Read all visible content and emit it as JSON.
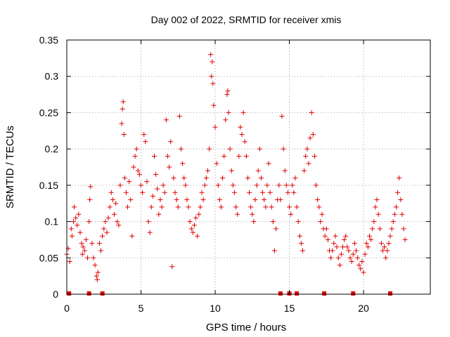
{
  "chart_data": {
    "type": "scatter",
    "title": "Day 002 of 2022, SRMTID for receiver xmis",
    "xlabel": "GPS time / hours",
    "ylabel": "SRMTID / TECUs",
    "xlim": [
      0,
      24.5
    ],
    "ylim": [
      0,
      0.35
    ],
    "xticks": [
      0,
      5,
      10,
      15,
      20
    ],
    "xtick_labels": [
      "0",
      "5",
      "10",
      "15",
      "20"
    ],
    "yticks": [
      0,
      0.05,
      0.1,
      0.15,
      0.2,
      0.25,
      0.3,
      0.35
    ],
    "ytick_labels": [
      "0",
      "0.05",
      "0.1",
      "0.15",
      "0.2",
      "0.25",
      "0.3",
      "0.35"
    ],
    "grid": true,
    "marker": "+",
    "color": "#e00000",
    "series": [
      {
        "name": "SRMTID",
        "points": [
          [
            0.0,
            0.055
          ],
          [
            0.1,
            0.063
          ],
          [
            0.2,
            0.045
          ],
          [
            0.3,
            0.09
          ],
          [
            0.35,
            0.08
          ],
          [
            0.45,
            0.1
          ],
          [
            0.5,
            0.12
          ],
          [
            0.6,
            0.105
          ],
          [
            0.7,
            0.095
          ],
          [
            0.8,
            0.11
          ],
          [
            0.9,
            0.085
          ],
          [
            1.0,
            0.07
          ],
          [
            1.05,
            0.055
          ],
          [
            1.1,
            0.065
          ],
          [
            1.2,
            0.06
          ],
          [
            1.3,
            0.075
          ],
          [
            1.4,
            0.05
          ],
          [
            1.5,
            0.1
          ],
          [
            1.55,
            0.13
          ],
          [
            1.6,
            0.148
          ],
          [
            1.7,
            0.07
          ],
          [
            1.8,
            0.05
          ],
          [
            1.9,
            0.04
          ],
          [
            2.0,
            0.025
          ],
          [
            2.05,
            0.02
          ],
          [
            2.1,
            0.03
          ],
          [
            2.2,
            0.07
          ],
          [
            2.3,
            0.06
          ],
          [
            2.4,
            0.08
          ],
          [
            2.5,
            0.09
          ],
          [
            2.6,
            0.1
          ],
          [
            2.7,
            0.085
          ],
          [
            2.8,
            0.105
          ],
          [
            2.9,
            0.12
          ],
          [
            3.0,
            0.14
          ],
          [
            3.1,
            0.13
          ],
          [
            3.2,
            0.11
          ],
          [
            3.3,
            0.125
          ],
          [
            3.4,
            0.1
          ],
          [
            3.5,
            0.095
          ],
          [
            3.6,
            0.15
          ],
          [
            3.7,
            0.235
          ],
          [
            3.75,
            0.255
          ],
          [
            3.8,
            0.265
          ],
          [
            3.85,
            0.22
          ],
          [
            3.9,
            0.16
          ],
          [
            4.0,
            0.14
          ],
          [
            4.1,
            0.12
          ],
          [
            4.2,
            0.155
          ],
          [
            4.3,
            0.13
          ],
          [
            4.4,
            0.08
          ],
          [
            4.5,
            0.175
          ],
          [
            4.6,
            0.19
          ],
          [
            4.7,
            0.2
          ],
          [
            4.8,
            0.17
          ],
          [
            4.9,
            0.165
          ],
          [
            5.0,
            0.15
          ],
          [
            5.1,
            0.14
          ],
          [
            5.2,
            0.22
          ],
          [
            5.3,
            0.21
          ],
          [
            5.4,
            0.155
          ],
          [
            5.5,
            0.1
          ],
          [
            5.6,
            0.085
          ],
          [
            5.7,
            0.12
          ],
          [
            5.8,
            0.135
          ],
          [
            5.9,
            0.19
          ],
          [
            6.0,
            0.165
          ],
          [
            6.1,
            0.145
          ],
          [
            6.2,
            0.11
          ],
          [
            6.3,
            0.13
          ],
          [
            6.4,
            0.12
          ],
          [
            6.5,
            0.15
          ],
          [
            6.6,
            0.14
          ],
          [
            6.7,
            0.24
          ],
          [
            6.8,
            0.19
          ],
          [
            6.9,
            0.175
          ],
          [
            7.0,
            0.21
          ],
          [
            7.1,
            0.038
          ],
          [
            7.2,
            0.16
          ],
          [
            7.3,
            0.14
          ],
          [
            7.4,
            0.13
          ],
          [
            7.5,
            0.12
          ],
          [
            7.6,
            0.245
          ],
          [
            7.7,
            0.2
          ],
          [
            7.8,
            0.18
          ],
          [
            7.9,
            0.16
          ],
          [
            8.0,
            0.15
          ],
          [
            8.1,
            0.13
          ],
          [
            8.2,
            0.12
          ],
          [
            8.3,
            0.1
          ],
          [
            8.4,
            0.09
          ],
          [
            8.5,
            0.085
          ],
          [
            8.6,
            0.095
          ],
          [
            8.7,
            0.105
          ],
          [
            8.8,
            0.08
          ],
          [
            8.9,
            0.11
          ],
          [
            9.0,
            0.12
          ],
          [
            9.1,
            0.14
          ],
          [
            9.2,
            0.13
          ],
          [
            9.3,
            0.15
          ],
          [
            9.4,
            0.16
          ],
          [
            9.5,
            0.17
          ],
          [
            9.6,
            0.2
          ],
          [
            9.7,
            0.33
          ],
          [
            9.75,
            0.3
          ],
          [
            9.8,
            0.32
          ],
          [
            9.85,
            0.29
          ],
          [
            9.9,
            0.26
          ],
          [
            10.0,
            0.23
          ],
          [
            10.1,
            0.18
          ],
          [
            10.2,
            0.15
          ],
          [
            10.3,
            0.13
          ],
          [
            10.4,
            0.12
          ],
          [
            10.5,
            0.16
          ],
          [
            10.6,
            0.19
          ],
          [
            10.7,
            0.24
          ],
          [
            10.8,
            0.275
          ],
          [
            10.85,
            0.28
          ],
          [
            10.9,
            0.25
          ],
          [
            11.0,
            0.2
          ],
          [
            11.1,
            0.17
          ],
          [
            11.2,
            0.15
          ],
          [
            11.3,
            0.14
          ],
          [
            11.4,
            0.12
          ],
          [
            11.5,
            0.11
          ],
          [
            11.6,
            0.19
          ],
          [
            11.7,
            0.23
          ],
          [
            11.8,
            0.22
          ],
          [
            11.9,
            0.25
          ],
          [
            12.0,
            0.21
          ],
          [
            12.1,
            0.19
          ],
          [
            12.2,
            0.16
          ],
          [
            12.3,
            0.14
          ],
          [
            12.4,
            0.12
          ],
          [
            12.5,
            0.11
          ],
          [
            12.6,
            0.1
          ],
          [
            12.7,
            0.13
          ],
          [
            12.8,
            0.15
          ],
          [
            12.9,
            0.17
          ],
          [
            13.0,
            0.2
          ],
          [
            13.1,
            0.16
          ],
          [
            13.2,
            0.14
          ],
          [
            13.3,
            0.13
          ],
          [
            13.4,
            0.12
          ],
          [
            13.5,
            0.15
          ],
          [
            13.6,
            0.18
          ],
          [
            13.7,
            0.14
          ],
          [
            13.8,
            0.12
          ],
          [
            13.9,
            0.1
          ],
          [
            14.0,
            0.06
          ],
          [
            14.1,
            0.09
          ],
          [
            14.2,
            0.13
          ],
          [
            14.3,
            0.15
          ],
          [
            14.4,
            0.13
          ],
          [
            14.5,
            0.245
          ],
          [
            14.6,
            0.2
          ],
          [
            14.7,
            0.17
          ],
          [
            14.8,
            0.15
          ],
          [
            14.9,
            0.14
          ],
          [
            15.0,
            0.12
          ],
          [
            15.1,
            0.11
          ],
          [
            15.2,
            0.15
          ],
          [
            15.3,
            0.14
          ],
          [
            15.4,
            0.16
          ],
          [
            15.5,
            0.12
          ],
          [
            15.6,
            0.1
          ],
          [
            15.7,
            0.08
          ],
          [
            15.8,
            0.07
          ],
          [
            15.9,
            0.06
          ],
          [
            16.0,
            0.17
          ],
          [
            16.1,
            0.19
          ],
          [
            16.2,
            0.2
          ],
          [
            16.3,
            0.18
          ],
          [
            16.4,
            0.215
          ],
          [
            16.5,
            0.25
          ],
          [
            16.6,
            0.22
          ],
          [
            16.7,
            0.19
          ],
          [
            16.8,
            0.15
          ],
          [
            16.9,
            0.13
          ],
          [
            17.0,
            0.12
          ],
          [
            17.1,
            0.1
          ],
          [
            17.2,
            0.11
          ],
          [
            17.3,
            0.09
          ],
          [
            17.4,
            0.08
          ],
          [
            17.5,
            0.09
          ],
          [
            17.6,
            0.075
          ],
          [
            17.7,
            0.06
          ],
          [
            17.8,
            0.05
          ],
          [
            17.9,
            0.06
          ],
          [
            18.0,
            0.07
          ],
          [
            18.1,
            0.08
          ],
          [
            18.2,
            0.065
          ],
          [
            18.3,
            0.05
          ],
          [
            18.4,
            0.04
          ],
          [
            18.5,
            0.055
          ],
          [
            18.6,
            0.065
          ],
          [
            18.7,
            0.075
          ],
          [
            18.8,
            0.08
          ],
          [
            18.9,
            0.065
          ],
          [
            19.0,
            0.06
          ],
          [
            19.1,
            0.05
          ],
          [
            19.2,
            0.045
          ],
          [
            19.3,
            0.055
          ],
          [
            19.4,
            0.07
          ],
          [
            19.5,
            0.06
          ],
          [
            19.6,
            0.05
          ],
          [
            19.7,
            0.04
          ],
          [
            19.8,
            0.035
          ],
          [
            19.9,
            0.045
          ],
          [
            20.0,
            0.03
          ],
          [
            20.1,
            0.055
          ],
          [
            20.2,
            0.07
          ],
          [
            20.3,
            0.065
          ],
          [
            20.4,
            0.08
          ],
          [
            20.5,
            0.075
          ],
          [
            20.6,
            0.09
          ],
          [
            20.7,
            0.1
          ],
          [
            20.8,
            0.12
          ],
          [
            20.9,
            0.13
          ],
          [
            21.0,
            0.11
          ],
          [
            21.1,
            0.09
          ],
          [
            21.2,
            0.07
          ],
          [
            21.3,
            0.06
          ],
          [
            21.4,
            0.065
          ],
          [
            21.5,
            0.05
          ],
          [
            21.6,
            0.06
          ],
          [
            21.7,
            0.07
          ],
          [
            21.8,
            0.08
          ],
          [
            21.9,
            0.09
          ],
          [
            22.0,
            0.1
          ],
          [
            22.1,
            0.11
          ],
          [
            22.2,
            0.12
          ],
          [
            22.3,
            0.14
          ],
          [
            22.4,
            0.16
          ],
          [
            22.5,
            0.13
          ],
          [
            22.6,
            0.11
          ],
          [
            22.7,
            0.09
          ],
          [
            22.8,
            0.075
          ]
        ]
      }
    ],
    "zero_markers": [
      0.15,
      1.5,
      2.4,
      14.4,
      15.0,
      15.5,
      17.35,
      19.3,
      21.8
    ]
  }
}
